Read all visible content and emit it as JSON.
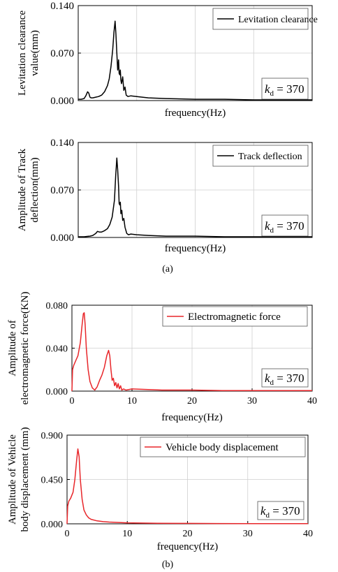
{
  "figure": {
    "caption_a": "(a)",
    "caption_b": "(b)"
  },
  "chart_data": [
    {
      "type": "line",
      "title": "",
      "xlabel": "frequency(Hz)",
      "ylabel": [
        "Levitation clearance",
        "value(mm)"
      ],
      "ylim": [
        0,
        0.14
      ],
      "yticks": [
        "0.000",
        "0.070",
        "0.140"
      ],
      "xticks": [],
      "xlim": [
        0,
        40
      ],
      "grid": true,
      "legend_position": "top-right",
      "series": [
        {
          "name": "Levitation clearance",
          "color": "#000000",
          "x": [
            0,
            0.5,
            1,
            1.3,
            1.6,
            1.8,
            2.0,
            2.2,
            2.5,
            3.0,
            3.5,
            4.0,
            4.5,
            5.0,
            5.3,
            5.6,
            5.9,
            6.1,
            6.3,
            6.45,
            6.6,
            6.75,
            6.9,
            7.0,
            7.1,
            7.2,
            7.3,
            7.4,
            7.6,
            7.8,
            8.0,
            8.2,
            8.5,
            9.0,
            10,
            12,
            15,
            20,
            25,
            30,
            35,
            40
          ],
          "y": [
            0.002,
            0.002,
            0.003,
            0.007,
            0.013,
            0.011,
            0.005,
            0.004,
            0.004,
            0.005,
            0.006,
            0.008,
            0.013,
            0.022,
            0.032,
            0.05,
            0.075,
            0.1,
            0.117,
            0.098,
            0.07,
            0.045,
            0.06,
            0.04,
            0.038,
            0.045,
            0.03,
            0.025,
            0.035,
            0.015,
            0.02,
            0.008,
            0.006,
            0.007,
            0.006,
            0.004,
            0.003,
            0.002,
            0.002,
            0.001,
            0.001,
            0.001
          ]
        }
      ],
      "annotation": {
        "k": "k",
        "sub": "d",
        "value": " = 370"
      }
    },
    {
      "type": "line",
      "title": "",
      "xlabel": "frequency(Hz)",
      "ylabel": [
        "Amplitude of Track",
        "deflection(mm)"
      ],
      "ylim": [
        0,
        0.14
      ],
      "yticks": [
        "0.000",
        "0.070",
        "0.140"
      ],
      "xticks": [],
      "xlim": [
        0,
        40
      ],
      "grid": true,
      "legend_position": "top-right",
      "series": [
        {
          "name": "Track deflection",
          "color": "#000000",
          "x": [
            0,
            1,
            2,
            2.5,
            3.0,
            3.3,
            3.6,
            4.0,
            4.5,
            5.0,
            5.4,
            5.8,
            6.2,
            6.4,
            6.6,
            6.75,
            6.9,
            7.0,
            7.1,
            7.2,
            7.3,
            7.45,
            7.6,
            7.8,
            8.0,
            8.3,
            8.6,
            9.0,
            10,
            12,
            15,
            20,
            25,
            30,
            35,
            40
          ],
          "y": [
            0.001,
            0.001,
            0.002,
            0.003,
            0.006,
            0.009,
            0.008,
            0.008,
            0.01,
            0.013,
            0.019,
            0.03,
            0.055,
            0.09,
            0.117,
            0.1,
            0.075,
            0.05,
            0.048,
            0.052,
            0.035,
            0.04,
            0.025,
            0.028,
            0.015,
            0.006,
            0.004,
            0.005,
            0.004,
            0.003,
            0.002,
            0.002,
            0.001,
            0.001,
            0.001,
            0.001
          ]
        }
      ],
      "annotation": {
        "k": "k",
        "sub": "d",
        "value": " = 370"
      }
    },
    {
      "type": "line",
      "title": "",
      "xlabel": "frequency(Hz)",
      "ylabel": [
        "Amplitude of",
        "electromagnetic force(KN)"
      ],
      "ylim": [
        0,
        0.08
      ],
      "yticks": [
        "0.000",
        "0.040",
        "0.080"
      ],
      "xticks": [
        "0",
        "10",
        "20",
        "30",
        "40"
      ],
      "xlim": [
        0,
        40
      ],
      "grid": true,
      "legend_position": "top-right",
      "series": [
        {
          "name": "Electromagnetic force",
          "color": "#e8262a",
          "x": [
            0,
            0.1,
            0.3,
            0.6,
            1.0,
            1.4,
            1.7,
            1.9,
            2.05,
            2.2,
            2.4,
            2.7,
            3.0,
            3.4,
            3.8,
            4.2,
            4.6,
            5.0,
            5.4,
            5.8,
            6.1,
            6.3,
            6.5,
            6.7,
            6.9,
            7.1,
            7.3,
            7.5,
            7.7,
            7.9,
            8.1,
            8.3,
            8.6,
            9.0,
            10,
            15,
            20,
            25,
            30,
            35,
            40
          ],
          "y": [
            0.0,
            0.02,
            0.024,
            0.028,
            0.033,
            0.045,
            0.062,
            0.072,
            0.073,
            0.062,
            0.04,
            0.02,
            0.009,
            0.003,
            0.001,
            0.004,
            0.01,
            0.015,
            0.022,
            0.033,
            0.038,
            0.033,
            0.02,
            0.01,
            0.012,
            0.005,
            0.008,
            0.003,
            0.007,
            0.002,
            0.005,
            0.001,
            0.002,
            0.001,
            0.002,
            0.001,
            0.001,
            0.0005,
            0.0005,
            0.0005,
            0.0005
          ]
        }
      ],
      "annotation": {
        "k": "k",
        "sub": "d",
        "value": " = 370"
      }
    },
    {
      "type": "line",
      "title": "",
      "xlabel": "frequency(Hz)",
      "ylabel": [
        "Amplitude of Vehicle",
        "body displacement (mm)"
      ],
      "ylim": [
        0,
        0.9
      ],
      "yticks": [
        "0.000",
        "0.450",
        "0.900"
      ],
      "xticks": [
        "0",
        "10",
        "20",
        "30",
        "40"
      ],
      "xlim": [
        0,
        40
      ],
      "grid": true,
      "legend_position": "top-right",
      "series": [
        {
          "name": "Vehicle body displacement",
          "color": "#e8262a",
          "x": [
            0,
            0.1,
            0.3,
            0.6,
            1.0,
            1.3,
            1.6,
            1.8,
            2.0,
            2.2,
            2.5,
            2.8,
            3.2,
            3.6,
            4.0,
            5.0,
            6.0,
            7.0,
            8.0,
            10,
            15,
            20,
            25,
            30,
            35,
            40
          ],
          "y": [
            0.0,
            0.18,
            0.23,
            0.26,
            0.32,
            0.45,
            0.65,
            0.76,
            0.68,
            0.45,
            0.25,
            0.14,
            0.09,
            0.06,
            0.045,
            0.03,
            0.022,
            0.018,
            0.015,
            0.01,
            0.006,
            0.004,
            0.003,
            0.002,
            0.002,
            0.002
          ]
        }
      ],
      "annotation": {
        "k": "k",
        "sub": "d",
        "value": " = 370"
      }
    }
  ]
}
